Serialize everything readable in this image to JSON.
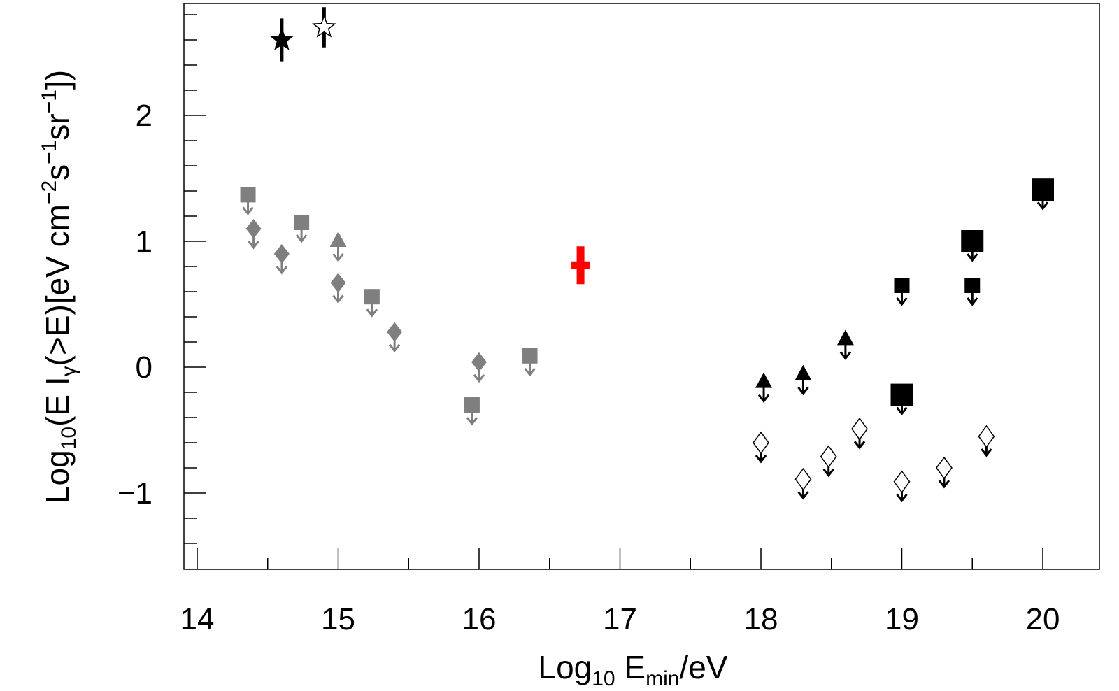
{
  "chart_data": {
    "type": "scatter",
    "xlabel": "Log10 Emin/eV",
    "ylabel": "Log10(E Iγ(>E)[eV cm−2s−1sr−1])",
    "xlabel_parts": {
      "a": "Log",
      "sub": "10",
      "b": " E",
      "sub2": "min",
      "c": "/eV"
    },
    "ylabel_parts": {
      "a": "Log",
      "sub": "10",
      "b": "(E I",
      "sub2": "γ",
      "c": "(>E)[eV cm",
      "sup1": "−2",
      "d": "s",
      "sup2": "−1",
      "e": "sr",
      "sup3": "−1",
      "f": "])"
    },
    "xlim": [
      13.9,
      20.4
    ],
    "ylim": [
      -1.6,
      2.9
    ],
    "x_ticks": [
      14,
      15,
      16,
      17,
      18,
      19,
      20
    ],
    "x_tick_labels": [
      "14",
      "15",
      "16",
      "17",
      "18",
      "19",
      "20"
    ],
    "y_ticks": [
      -1,
      0,
      1,
      2
    ],
    "y_tick_labels": [
      "−1",
      "0",
      "1",
      "2"
    ],
    "grid": false,
    "series": [
      {
        "marker": "star-filled",
        "color": "#000000",
        "type": "measurement",
        "points": [
          {
            "x": 14.6,
            "y": 2.6,
            "err": 0.17
          }
        ]
      },
      {
        "marker": "star-open",
        "color": "#000000",
        "type": "measurement",
        "points": [
          {
            "x": 14.9,
            "y": 2.7,
            "err": 0.16
          }
        ]
      },
      {
        "marker": "cross",
        "color": "#ff0000",
        "type": "measurement",
        "points": [
          {
            "x": 16.72,
            "y": 0.81,
            "err": 0.15
          }
        ]
      },
      {
        "marker": "square",
        "color": "#7f7f7f",
        "type": "upper-limit",
        "points": [
          {
            "x": 14.36,
            "y": 1.37
          },
          {
            "x": 14.74,
            "y": 1.15
          },
          {
            "x": 15.24,
            "y": 0.56
          },
          {
            "x": 15.95,
            "y": -0.3
          },
          {
            "x": 16.36,
            "y": 0.09
          }
        ]
      },
      {
        "marker": "diamond",
        "color": "#7f7f7f",
        "type": "upper-limit",
        "points": [
          {
            "x": 14.4,
            "y": 1.1
          },
          {
            "x": 14.6,
            "y": 0.9
          },
          {
            "x": 15.0,
            "y": 0.67
          },
          {
            "x": 15.4,
            "y": 0.28
          },
          {
            "x": 16.0,
            "y": 0.04
          }
        ]
      },
      {
        "marker": "triangle",
        "color": "#7f7f7f",
        "type": "upper-limit",
        "points": [
          {
            "x": 15.0,
            "y": 1.0
          }
        ]
      },
      {
        "marker": "triangle",
        "color": "#000000",
        "type": "upper-limit",
        "points": [
          {
            "x": 18.02,
            "y": -0.12
          },
          {
            "x": 18.3,
            "y": -0.06
          },
          {
            "x": 18.6,
            "y": 0.22
          }
        ]
      },
      {
        "marker": "square",
        "color": "#000000",
        "type": "upper-limit",
        "points": [
          {
            "x": 19.0,
            "y": 0.65
          },
          {
            "x": 19.5,
            "y": 0.65
          }
        ]
      },
      {
        "marker": "square-large",
        "color": "#000000",
        "type": "upper-limit",
        "points": [
          {
            "x": 19.0,
            "y": -0.22
          },
          {
            "x": 19.5,
            "y": 1.0
          },
          {
            "x": 20.0,
            "y": 1.41
          }
        ]
      },
      {
        "marker": "diamond-open",
        "color": "#000000",
        "type": "upper-limit",
        "points": [
          {
            "x": 18.0,
            "y": -0.6
          },
          {
            "x": 18.3,
            "y": -0.89
          },
          {
            "x": 18.48,
            "y": -0.71
          },
          {
            "x": 18.7,
            "y": -0.49
          },
          {
            "x": 19.0,
            "y": -0.91
          },
          {
            "x": 19.3,
            "y": -0.8
          },
          {
            "x": 19.6,
            "y": -0.55
          }
        ]
      }
    ]
  }
}
